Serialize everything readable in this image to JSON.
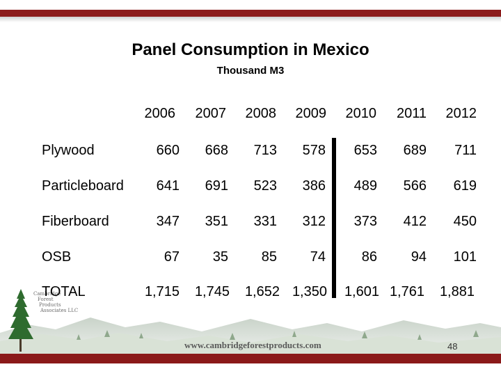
{
  "slide": {
    "title": "Panel Consumption in Mexico",
    "subtitle": "Thousand M3",
    "page_number": "48",
    "website": "www.cambridgeforestproducts.com"
  },
  "logo": {
    "line1": "Cambridge",
    "line2": "Forest",
    "line3": "Products",
    "line4": "Associates LLC"
  },
  "table": {
    "years": [
      "2006",
      "2007",
      "2008",
      "2009",
      "2010",
      "2011",
      "2012"
    ],
    "rows": [
      {
        "label": "Plywood",
        "values": [
          "660",
          "668",
          "713",
          "578",
          "653",
          "689",
          "711"
        ]
      },
      {
        "label": "Particleboard",
        "values": [
          "641",
          "691",
          "523",
          "386",
          "489",
          "566",
          "619"
        ]
      },
      {
        "label": "Fiberboard",
        "values": [
          "347",
          "351",
          "331",
          "312",
          "373",
          "412",
          "450"
        ]
      },
      {
        "label": "OSB",
        "values": [
          "67",
          "35",
          "85",
          "74",
          "86",
          "94",
          "101"
        ]
      },
      {
        "label": "TOTAL",
        "values": [
          "1,715",
          "1,745",
          "1,652",
          "1,350",
          "1,601",
          "1,761",
          "1,881"
        ]
      }
    ]
  },
  "colors": {
    "accent_bar": "#8b1a1a",
    "tree_green": "#2e6b2e"
  }
}
